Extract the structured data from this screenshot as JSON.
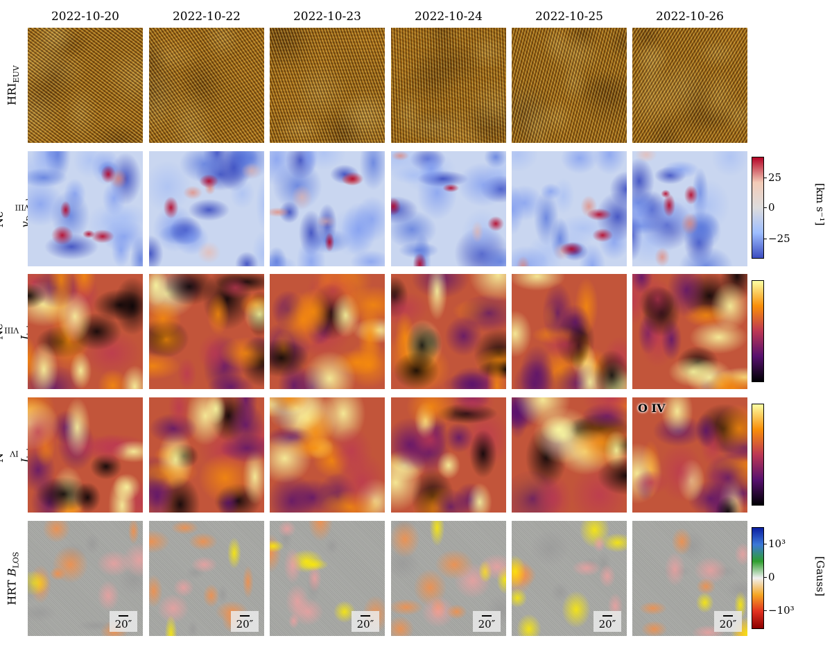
{
  "dates": [
    "2022-10-20",
    "2022-10-22",
    "2022-10-23",
    "2022-10-24",
    "2022-10-25",
    "2022-10-26"
  ],
  "rows": [
    {
      "label": "HRI_EUV",
      "colormap": "euv"
    },
    {
      "label": "Ne VIII v_Doppler",
      "colormap": "doppler"
    },
    {
      "label": "Ne VIII I_tot",
      "colormap": "inferno"
    },
    {
      "label": "N IV I_tot",
      "colormap": "inferno"
    },
    {
      "label": "HRT B_LOS",
      "colormap": "hrt"
    }
  ],
  "annotation": "O IV",
  "scalebar_label": "20″",
  "colorbars": {
    "doppler": {
      "unit": "[km s⁻¹]",
      "ticks": [
        "25",
        "0",
        "−25"
      ],
      "colors": [
        "#b40426",
        "#f2cbb7",
        "#dddcdc",
        "#9ebeff",
        "#3b4cc0"
      ]
    },
    "intensity": {
      "colors": [
        "#fcffa4",
        "#f98e09",
        "#bc3754",
        "#57106e",
        "#000004"
      ]
    },
    "hrt": {
      "unit": "[Gauss]",
      "ticks": [
        "10³",
        "0",
        "−10³"
      ],
      "colors": [
        "#0a1ea0",
        "#3c78d8",
        "#2e9e2e",
        "#f0f0f0",
        "#f5a623",
        "#e03020",
        "#8b0000"
      ]
    }
  }
}
